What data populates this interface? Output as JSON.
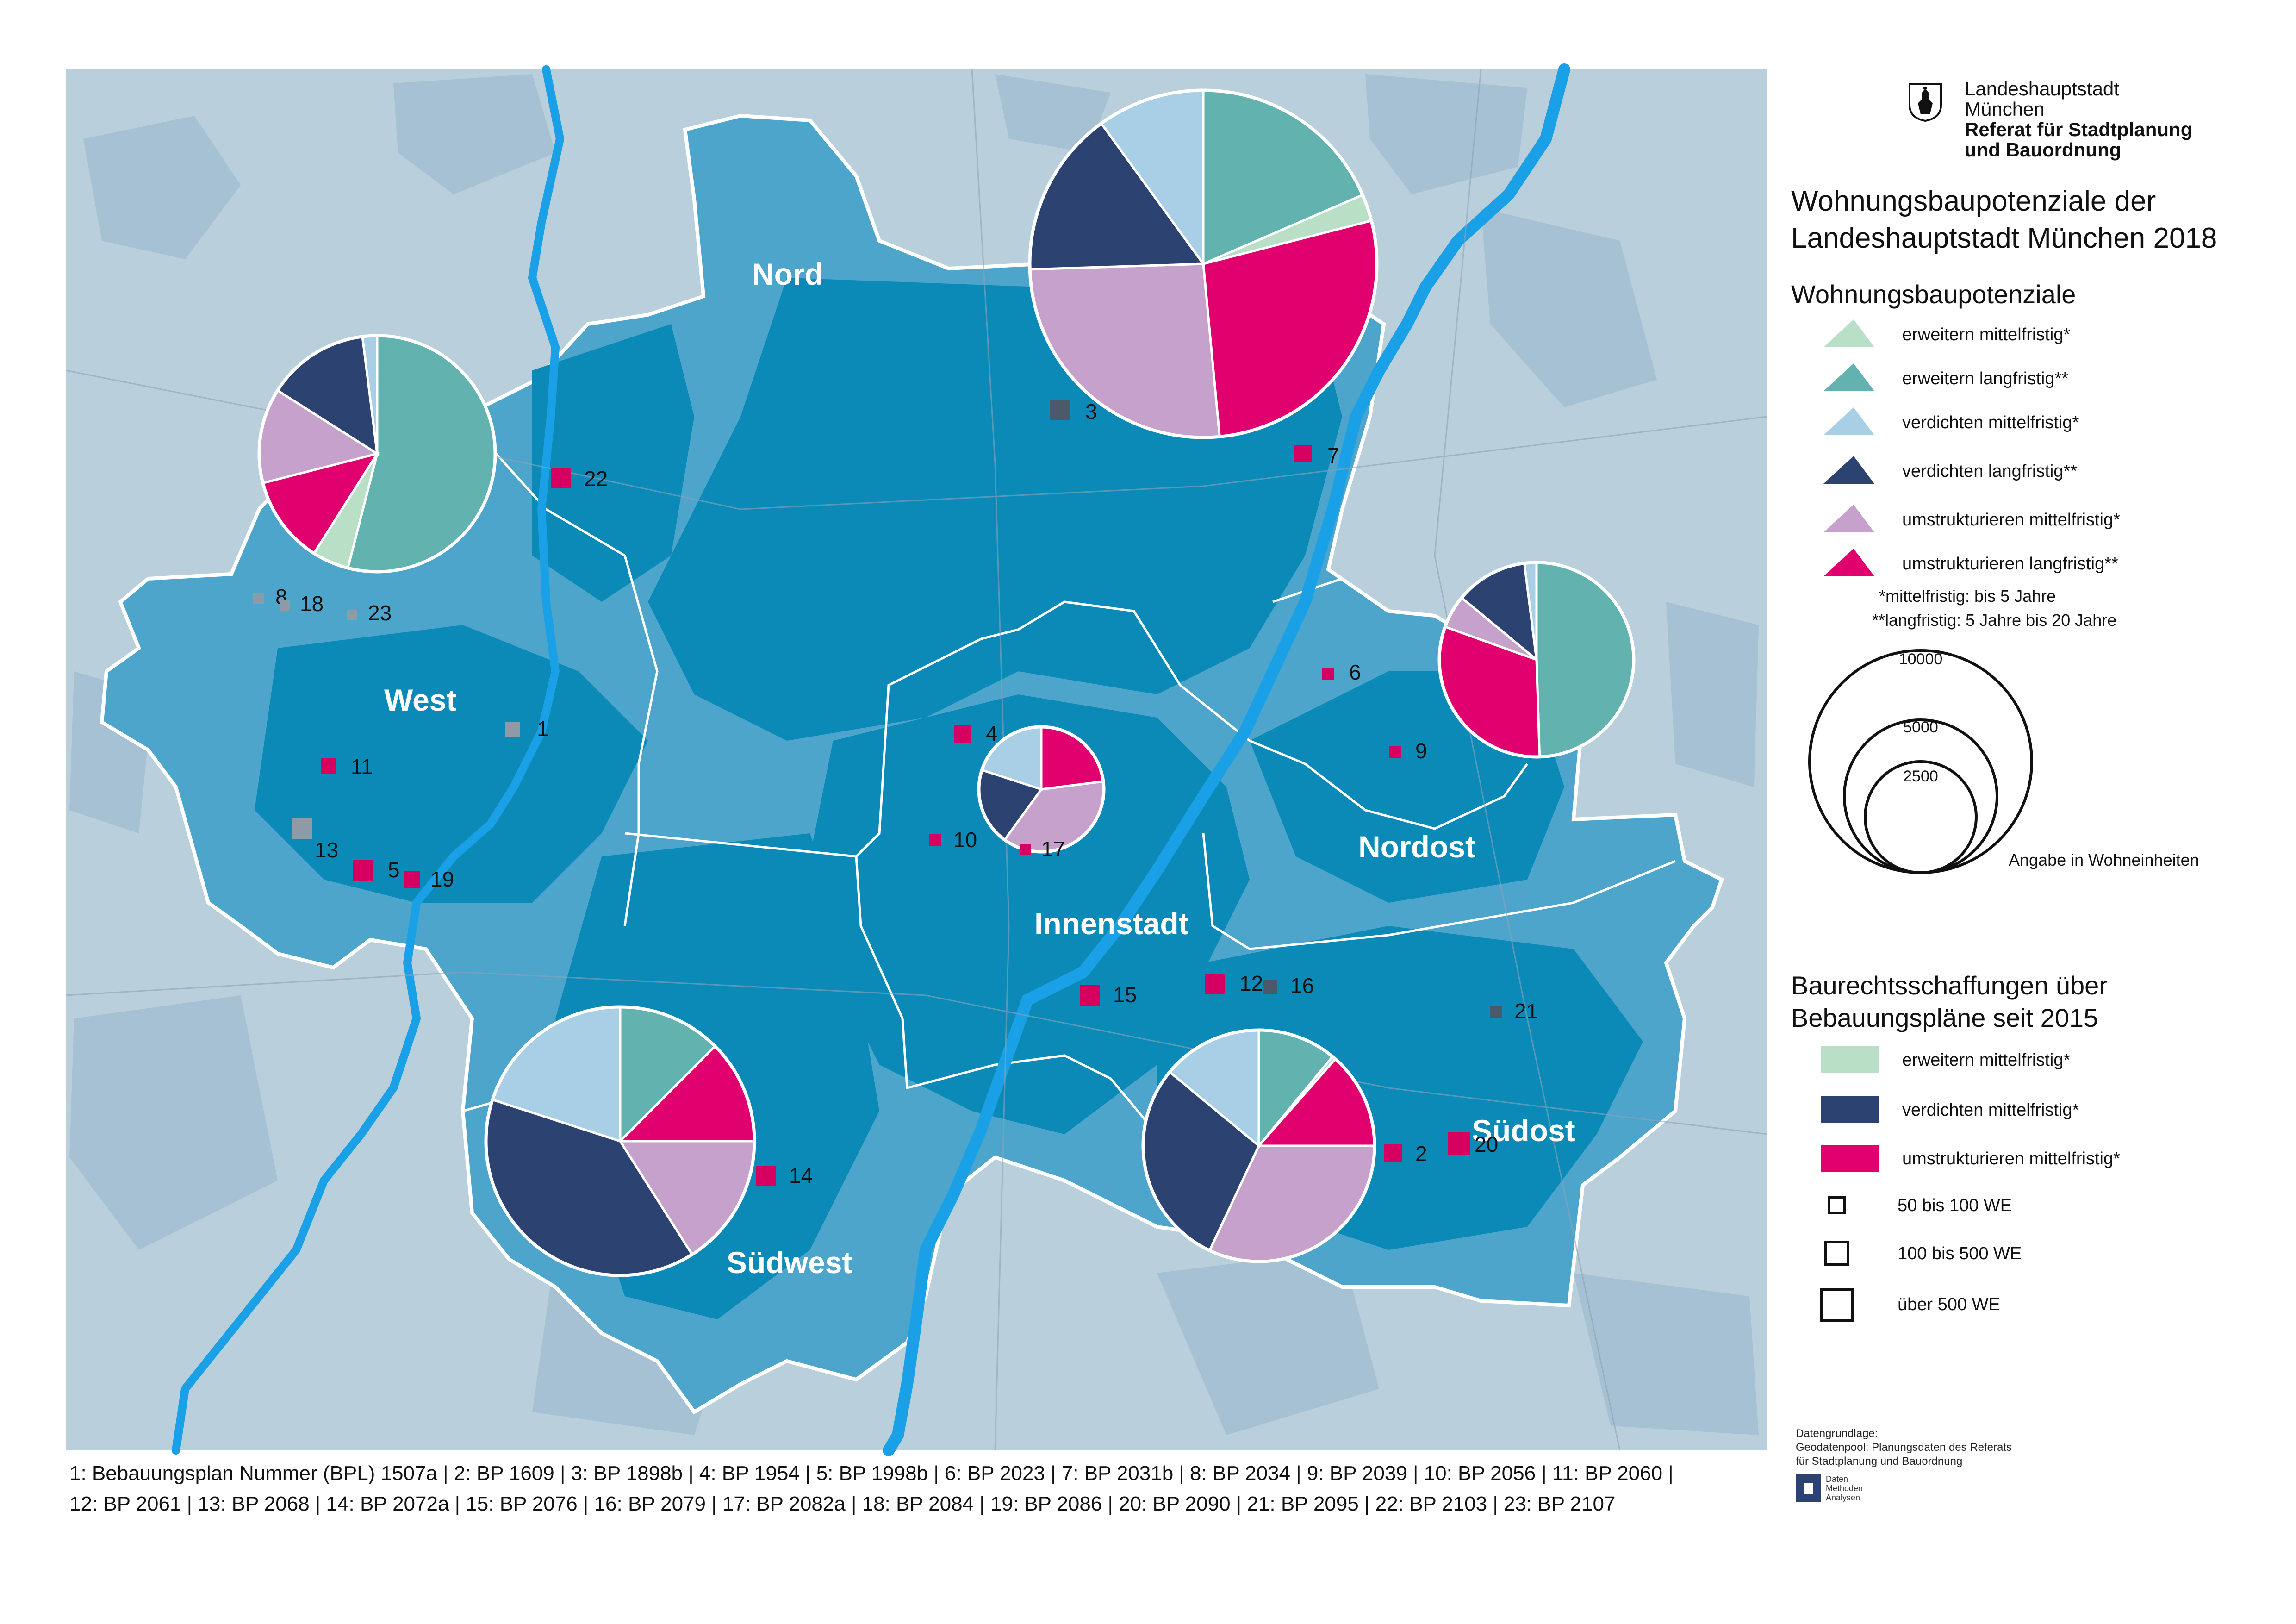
{
  "organization": {
    "line1": "Landeshauptstadt",
    "line2": "München",
    "line3": "Referat für Stadtplanung",
    "line4": "und Bauordnung"
  },
  "title": {
    "line1": "Wohnungsbaupotenziale der",
    "line2": "Landeshauptstadt München 2018"
  },
  "legend_potentials": {
    "heading": "Wohnungsbaupotenziale",
    "items": [
      {
        "label": "erweitern mittelfristig*",
        "color": "#b9dfc7"
      },
      {
        "label": "erweitern langfristig**",
        "color": "#62b2b0"
      },
      {
        "label": "verdichten mittelfristig*",
        "color": "#a9cfe6"
      },
      {
        "label": "verdichten langfristig**",
        "color": "#2c4271"
      },
      {
        "label": "umstrukturieren mittelfristig*",
        "color": "#c6a1cc"
      },
      {
        "label": "umstrukturieren langfristig**",
        "color": "#e0006e"
      }
    ],
    "note1": "*mittelfristig: bis 5 Jahre",
    "note2": "**langfristig: 5 Jahre bis 20 Jahre",
    "circle_values": [
      "10000",
      "5000",
      "2500"
    ],
    "circle_unit": "Angabe in Wohneinheiten"
  },
  "legend_plans": {
    "heading_line1": "Baurechtsschaffungen über",
    "heading_line2": "Bebauungspläne seit 2015",
    "items": [
      {
        "label": "erweitern mittelfristig*",
        "color": "#b9dfc7"
      },
      {
        "label": "verdichten mittelfristig*",
        "color": "#2c4271"
      },
      {
        "label": "umstrukturieren mittelfristig*",
        "color": "#e0006e"
      }
    ],
    "sizes": [
      "50 bis 100 WE",
      "100 bis 500 WE",
      "über 500 WE"
    ]
  },
  "regions": [
    {
      "name": "Nord"
    },
    {
      "name": "West"
    },
    {
      "name": "Innenstadt"
    },
    {
      "name": "Nordost"
    },
    {
      "name": "Südwest"
    },
    {
      "name": "Südost"
    }
  ],
  "pies": [
    {
      "region": "Nord",
      "slices": [
        {
          "category": "erweitern langfristig**",
          "share": 0.185,
          "color": "#62b2b0"
        },
        {
          "category": "erweitern mittelfristig*",
          "share": 0.025,
          "color": "#b9dfc7"
        },
        {
          "category": "umstrukturieren langfristig**",
          "share": 0.275,
          "color": "#e0006e"
        },
        {
          "category": "umstrukturieren mittelfristig*",
          "share": 0.26,
          "color": "#c6a1cc"
        },
        {
          "category": "verdichten langfristig**",
          "share": 0.155,
          "color": "#2c4271"
        },
        {
          "category": "verdichten mittelfristig*",
          "share": 0.1,
          "color": "#a9cfe6"
        }
      ]
    },
    {
      "region": "West",
      "slices": [
        {
          "category": "erweitern langfristig**",
          "share": 0.54,
          "color": "#62b2b0"
        },
        {
          "category": "erweitern mittelfristig*",
          "share": 0.05,
          "color": "#b9dfc7"
        },
        {
          "category": "umstrukturieren langfristig**",
          "share": 0.12,
          "color": "#e0006e"
        },
        {
          "category": "umstrukturieren mittelfristig*",
          "share": 0.13,
          "color": "#c6a1cc"
        },
        {
          "category": "verdichten langfristig**",
          "share": 0.14,
          "color": "#2c4271"
        },
        {
          "category": "verdichten mittelfristig*",
          "share": 0.02,
          "color": "#a9cfe6"
        }
      ]
    },
    {
      "region": "Innenstadt",
      "slices": [
        {
          "category": "umstrukturieren langfristig**",
          "share": 0.23,
          "color": "#e0006e"
        },
        {
          "category": "umstrukturieren mittelfristig*",
          "share": 0.37,
          "color": "#c6a1cc"
        },
        {
          "category": "verdichten langfristig**",
          "share": 0.2,
          "color": "#2c4271"
        },
        {
          "category": "verdichten mittelfristig*",
          "share": 0.2,
          "color": "#a9cfe6"
        }
      ]
    },
    {
      "region": "Nordost",
      "slices": [
        {
          "category": "erweitern langfristig**",
          "share": 0.495,
          "color": "#62b2b0"
        },
        {
          "category": "umstrukturieren langfristig**",
          "share": 0.31,
          "color": "#e0006e"
        },
        {
          "category": "umstrukturieren mittelfristig*",
          "share": 0.055,
          "color": "#c6a1cc"
        },
        {
          "category": "verdichten langfristig**",
          "share": 0.12,
          "color": "#2c4271"
        },
        {
          "category": "verdichten mittelfristig*",
          "share": 0.02,
          "color": "#a9cfe6"
        }
      ]
    },
    {
      "region": "Südwest",
      "slices": [
        {
          "category": "erweitern langfristig**",
          "share": 0.125,
          "color": "#62b2b0"
        },
        {
          "category": "umstrukturieren langfristig**",
          "share": 0.125,
          "color": "#e0006e"
        },
        {
          "category": "umstrukturieren mittelfristig*",
          "share": 0.16,
          "color": "#c6a1cc"
        },
        {
          "category": "verdichten langfristig**",
          "share": 0.39,
          "color": "#2c4271"
        },
        {
          "category": "verdichten mittelfristig*",
          "share": 0.2,
          "color": "#a9cfe6"
        }
      ]
    },
    {
      "region": "Südost",
      "slices": [
        {
          "category": "erweitern langfristig**",
          "share": 0.11,
          "color": "#62b2b0"
        },
        {
          "category": "erweitern mittelfristig*",
          "share": 0.005,
          "color": "#b9dfc7"
        },
        {
          "category": "umstrukturieren langfristig**",
          "share": 0.135,
          "color": "#e0006e"
        },
        {
          "category": "umstrukturieren mittelfristig*",
          "share": 0.32,
          "color": "#c6a1cc"
        },
        {
          "category": "verdichten langfristig**",
          "share": 0.29,
          "color": "#2c4271"
        },
        {
          "category": "verdichten mittelfristig*",
          "share": 0.14,
          "color": "#a9cfe6"
        }
      ]
    }
  ],
  "plans": [
    {
      "id": "1",
      "category": "erweitern mittelfristig*",
      "color": "#8e9aa6"
    },
    {
      "id": "2",
      "category": "umstrukturieren mittelfristig*",
      "color": "#d5005f"
    },
    {
      "id": "3",
      "category": "verdichten mittelfristig*",
      "color": "#4b5a6a"
    },
    {
      "id": "4",
      "category": "umstrukturieren mittelfristig*",
      "color": "#d5005f"
    },
    {
      "id": "5",
      "category": "umstrukturieren mittelfristig*",
      "color": "#d5005f"
    },
    {
      "id": "6",
      "category": "umstrukturieren mittelfristig*",
      "color": "#d5005f"
    },
    {
      "id": "7",
      "category": "umstrukturieren mittelfristig*",
      "color": "#d5005f"
    },
    {
      "id": "8",
      "category": "erweitern mittelfristig*",
      "color": "#8e9aa6"
    },
    {
      "id": "9",
      "category": "umstrukturieren mittelfristig*",
      "color": "#d5005f"
    },
    {
      "id": "10",
      "category": "umstrukturieren mittelfristig*",
      "color": "#d5005f"
    },
    {
      "id": "11",
      "category": "umstrukturieren mittelfristig*",
      "color": "#d5005f"
    },
    {
      "id": "12",
      "category": "umstrukturieren mittelfristig*",
      "color": "#d5005f"
    },
    {
      "id": "13",
      "category": "erweitern mittelfristig*",
      "color": "#8e9aa6"
    },
    {
      "id": "14",
      "category": "umstrukturieren mittelfristig*",
      "color": "#d5005f"
    },
    {
      "id": "15",
      "category": "umstrukturieren mittelfristig*",
      "color": "#d5005f"
    },
    {
      "id": "16",
      "category": "verdichten mittelfristig*",
      "color": "#4b5a6a"
    },
    {
      "id": "17",
      "category": "umstrukturieren mittelfristig*",
      "color": "#d5005f"
    },
    {
      "id": "18",
      "category": "erweitern mittelfristig*",
      "color": "#8e9aa6"
    },
    {
      "id": "19",
      "category": "umstrukturieren mittelfristig*",
      "color": "#d5005f"
    },
    {
      "id": "20",
      "category": "umstrukturieren mittelfristig*",
      "color": "#d5005f"
    },
    {
      "id": "21",
      "category": "verdichten mittelfristig*",
      "color": "#4b5a6a"
    },
    {
      "id": "22",
      "category": "umstrukturieren mittelfristig*",
      "color": "#d5005f"
    },
    {
      "id": "23",
      "category": "erweitern mittelfristig*",
      "color": "#8e9aa6"
    }
  ],
  "footer": {
    "line1": "1: Bebauungsplan Nummer (BPL) 1507a | 2: BP 1609 | 3: BP 1898b | 4: BP 1954 | 5: BP 1998b | 6: BP 2023 | 7: BP 2031b | 8: BP 2034 | 9: BP 2039 | 10: BP 2056 | 11: BP 2060 |",
    "line2": "12: BP 2061 | 13: BP 2068 | 14: BP 2072a | 15: BP 2076 | 16: BP 2079 | 17: BP 2082a | 18: BP 2084 | 19: BP 2086 | 20: BP 2090 | 21: BP 2095 | 22: BP 2103 | 23: BP 2107"
  },
  "source": {
    "line1": "Datengrundlage:",
    "line2": "Geodatenpool; Planungsdaten des Referats",
    "line3": "für Stadtplanung und Bauordnung"
  },
  "department": {
    "line1": "Daten",
    "line2": "Methoden",
    "line3": "Analysen"
  },
  "colors": {
    "map_background": "#b9cfdc",
    "city_light": "#4ea5cc",
    "city_dark": "#0b8ab8",
    "river": "#1aa0e6",
    "city_border": "#ffffff"
  }
}
